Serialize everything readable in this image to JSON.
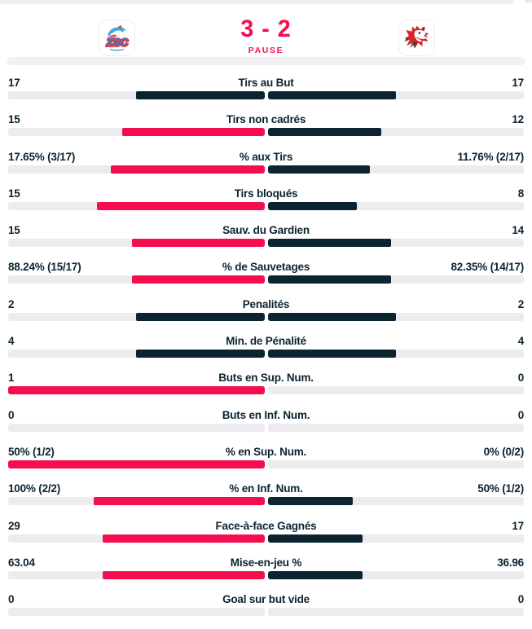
{
  "colors": {
    "accent": "#f60d4e",
    "navy": "#0c2330",
    "track": "#ececee",
    "divider": "#f1f1f3",
    "text": "#0c2330"
  },
  "header": {
    "score": "3 - 2",
    "status": "PAUSE",
    "home_logo_text": "ZSC"
  },
  "stats": {
    "rows": [
      {
        "label": "Tirs au But",
        "home": "17",
        "away": "17",
        "home_num": 17,
        "away_num": 17
      },
      {
        "label": "Tirs non cadrés",
        "home": "15",
        "away": "12",
        "home_num": 15,
        "away_num": 12
      },
      {
        "label": "% aux Tirs",
        "home": "17.65% (3/17)",
        "away": "11.76% (2/17)",
        "home_num": 17.65,
        "away_num": 11.76
      },
      {
        "label": "Tirs bloqués",
        "home": "15",
        "away": "8",
        "home_num": 15,
        "away_num": 8
      },
      {
        "label": "Sauv. du Gardien",
        "home": "15",
        "away": "14",
        "home_num": 15,
        "away_num": 14
      },
      {
        "label": "% de Sauvetages",
        "home": "88.24% (15/17)",
        "away": "82.35% (14/17)",
        "home_num": 88.24,
        "away_num": 82.35
      },
      {
        "label": "Penalités",
        "home": "2",
        "away": "2",
        "home_num": 2,
        "away_num": 2
      },
      {
        "label": "Min. de Pénalité",
        "home": "4",
        "away": "4",
        "home_num": 4,
        "away_num": 4
      },
      {
        "label": "Buts en Sup. Num.",
        "home": "1",
        "away": "0",
        "home_num": 1,
        "away_num": 0
      },
      {
        "label": "Buts en Inf. Num.",
        "home": "0",
        "away": "0",
        "home_num": 0,
        "away_num": 0
      },
      {
        "label": "% en Sup. Num.",
        "home": "50% (1/2)",
        "away": "0% (0/2)",
        "home_num": 50,
        "away_num": 0
      },
      {
        "label": "% en Inf. Num.",
        "home": "100% (2/2)",
        "away": "50% (1/2)",
        "home_num": 100,
        "away_num": 50
      },
      {
        "label": "Face-à-face Gagnés",
        "home": "29",
        "away": "17",
        "home_num": 29,
        "away_num": 17
      },
      {
        "label": "Mise-en-jeu %",
        "home": "63.04",
        "away": "36.96",
        "home_num": 63.04,
        "away_num": 36.96
      },
      {
        "label": "Goal sur but vide",
        "home": "0",
        "away": "0",
        "home_num": 0,
        "away_num": 0
      }
    ]
  }
}
